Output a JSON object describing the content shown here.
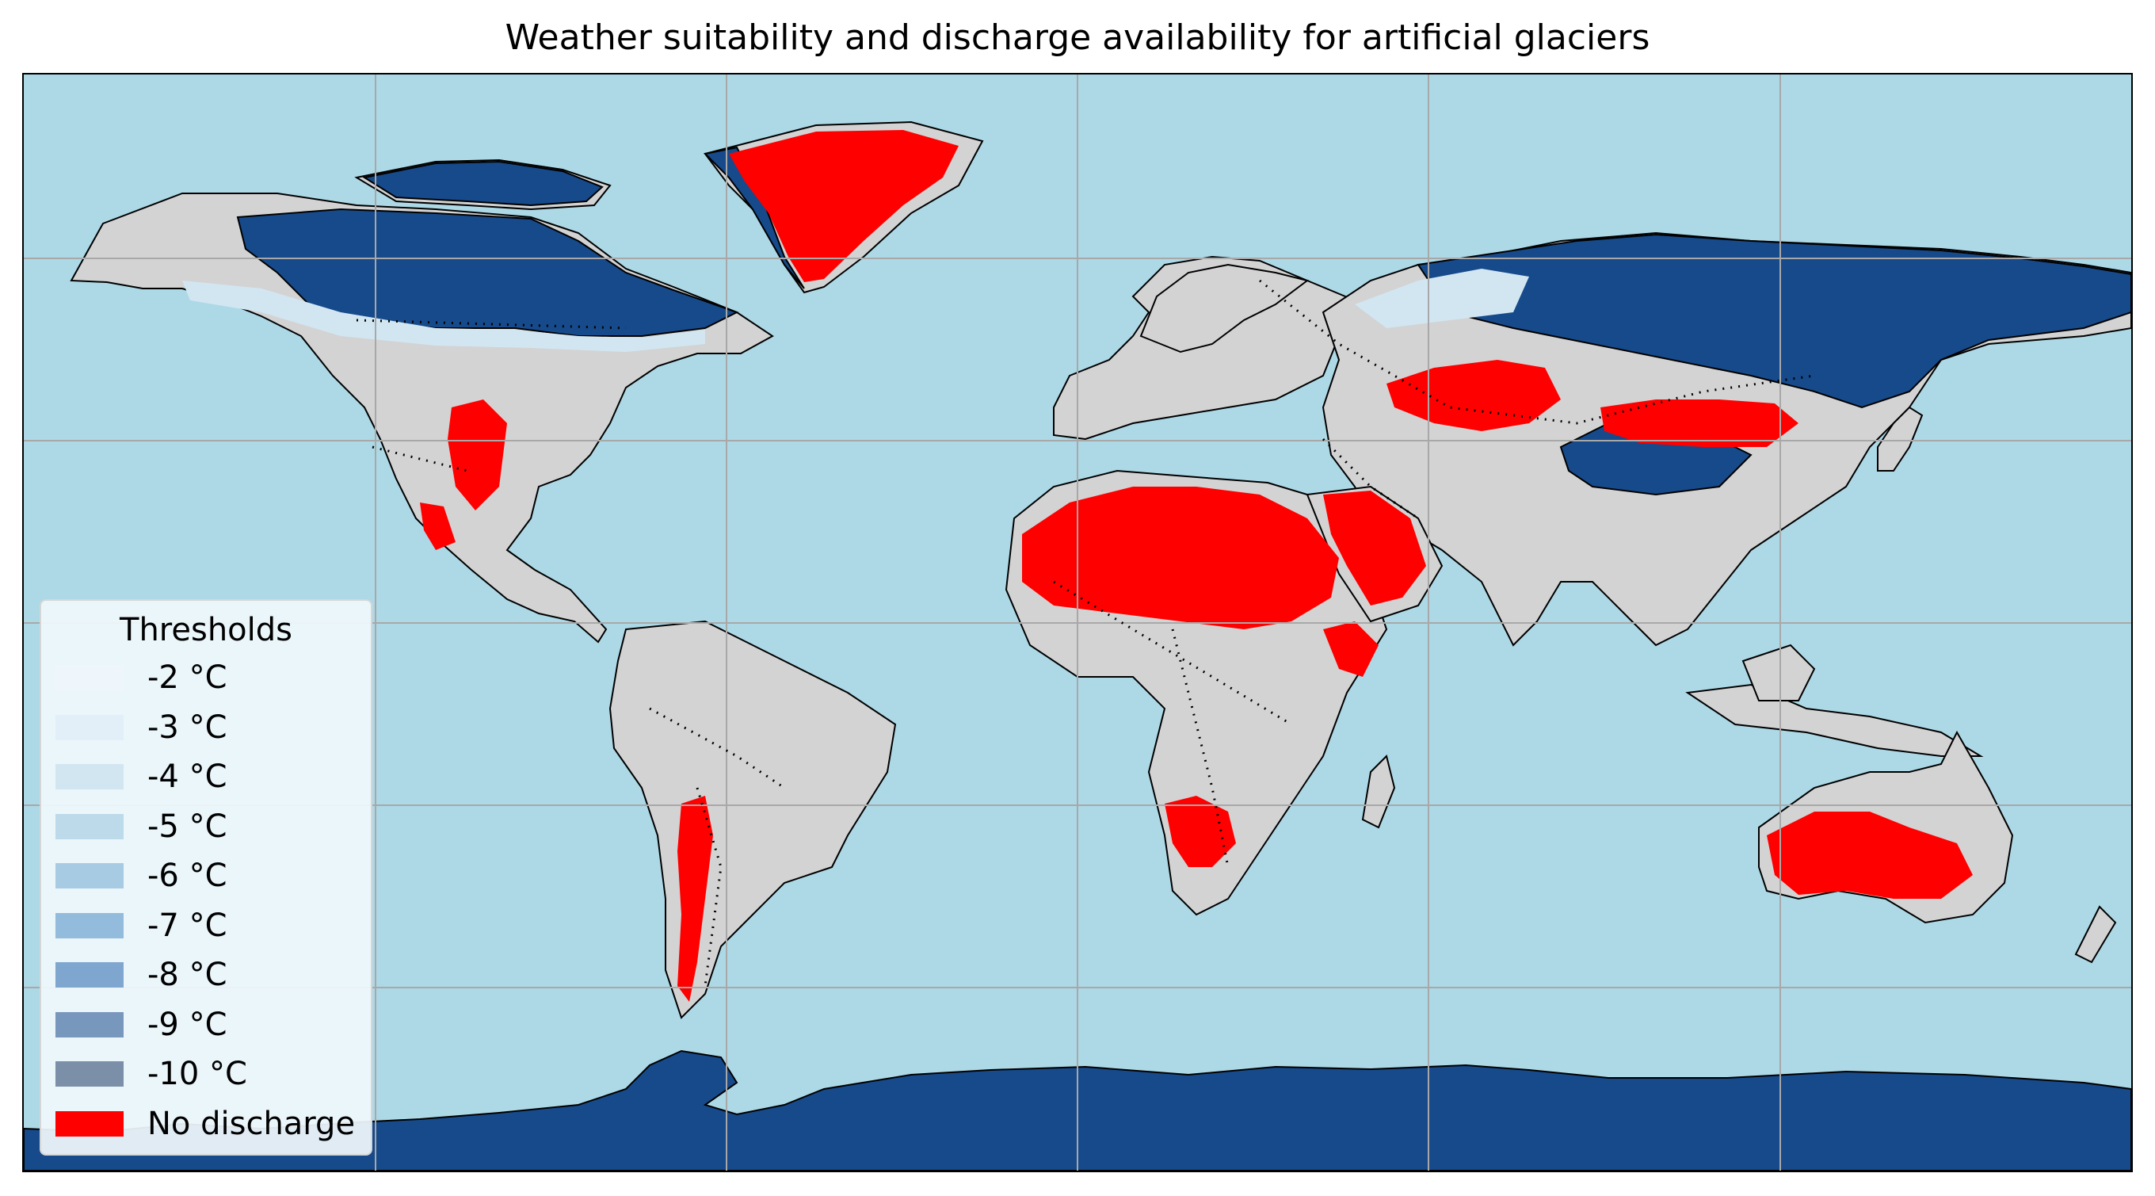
{
  "title": "Weather suitability and discharge availability for artificial glaciers",
  "colors": {
    "ocean": "#add8e6",
    "land": "#d3d3d3",
    "deep_freeze": "#164a8a",
    "no_discharge": "#ff0000",
    "gridline": "#a8a8a8",
    "coastline": "#000000"
  },
  "legend": {
    "title": "Thresholds",
    "items": [
      {
        "label": "-2 °C",
        "color": "#eef6fb"
      },
      {
        "label": "-3 °C",
        "color": "#e2eff8"
      },
      {
        "label": "-4 °C",
        "color": "#d2e6f2"
      },
      {
        "label": "-5 °C",
        "color": "#bddaea"
      },
      {
        "label": "-6 °C",
        "color": "#a8cbe4"
      },
      {
        "label": "-7 °C",
        "color": "#93bbdb"
      },
      {
        "label": "-8 °C",
        "color": "#7fa6cf"
      },
      {
        "label": "-9 °C",
        "color": "#7897bd"
      },
      {
        "label": "-10 °C",
        "color": "#7c8fa8"
      },
      {
        "label": "No discharge",
        "color": "#ff0000"
      }
    ]
  }
}
